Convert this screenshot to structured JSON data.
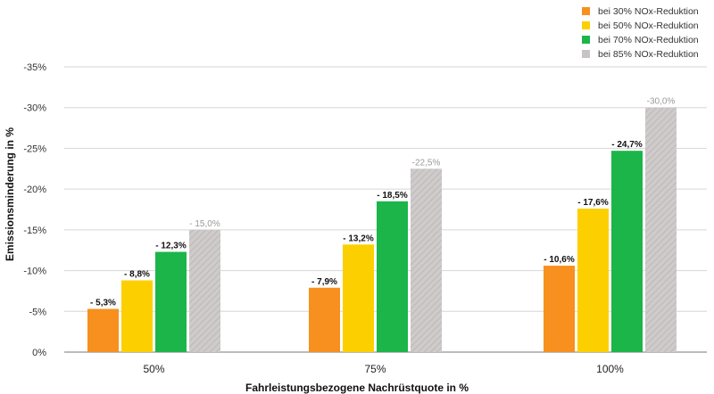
{
  "chart_data": {
    "type": "bar",
    "ylabel": "Emissionsminderung in %",
    "xlabel": "Fahrleistungsbezogene Nachrüstquote in %",
    "categories": [
      "50%",
      "75%",
      "100%"
    ],
    "ylim": [
      0,
      -35
    ],
    "yticks": [
      0,
      -5,
      -10,
      -15,
      -20,
      -25,
      -30,
      -35
    ],
    "ytick_labels": [
      "0%",
      "-5%",
      "-10%",
      "-15%",
      "-20%",
      "-25%",
      "-30%",
      "-35%"
    ],
    "grid": true,
    "legend_position": "top-right",
    "series": [
      {
        "name": "bei 30% NOx-Reduktion",
        "color": "#f7901e",
        "values": [
          -5.3,
          -7.9,
          -10.6
        ],
        "labels": [
          "- 5,3%",
          "- 7,9%",
          "- 10,6%"
        ],
        "style": "solid"
      },
      {
        "name": "bei 50% NOx-Reduktion",
        "color": "#fcd000",
        "values": [
          -8.8,
          -13.2,
          -17.6
        ],
        "labels": [
          "- 8,8%",
          "- 13,2%",
          "- 17,6%"
        ],
        "style": "solid"
      },
      {
        "name": "bei 70% NOx-Reduktion",
        "color": "#1cb54a",
        "values": [
          -12.3,
          -18.5,
          -24.7
        ],
        "labels": [
          "- 12,3%",
          "- 18,5%",
          "- 24,7%"
        ],
        "style": "solid"
      },
      {
        "name": "bei 85% NOx-Reduktion",
        "color": "#c8c4c4",
        "values": [
          -15.0,
          -22.5,
          -30.0
        ],
        "labels": [
          "- 15,0%",
          "-22,5%",
          "-30,0%"
        ],
        "style": "hatched"
      }
    ]
  }
}
